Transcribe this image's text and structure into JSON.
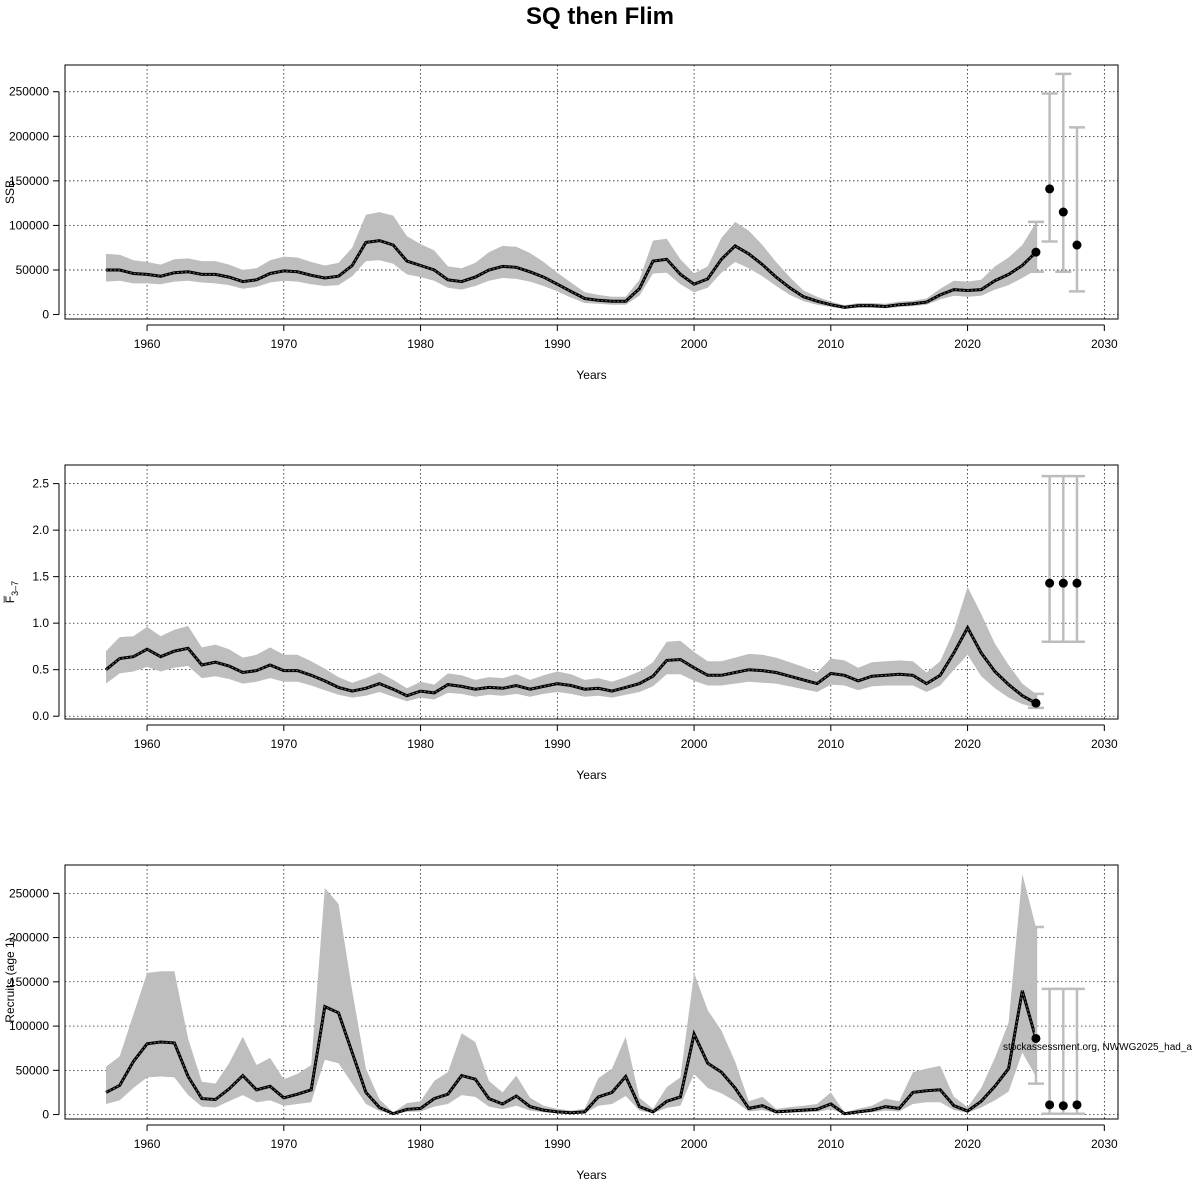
{
  "title": "SQ then Flim",
  "colors": {
    "band": "#bebebe",
    "line": "#000000",
    "errorbar": "#bdbdbd",
    "grid": "#000000",
    "dot": "#000000"
  },
  "chart_data": [
    {
      "type": "line",
      "id": "ssb",
      "ylabel": "SSB",
      "xlabel": "Years",
      "xlim": [
        1954,
        2031
      ],
      "ylim": [
        -5000,
        280000
      ],
      "xticks": [
        1960,
        1970,
        1980,
        1990,
        2000,
        2010,
        2020,
        2030
      ],
      "yticks": [
        0,
        50000,
        100000,
        150000,
        200000,
        250000
      ],
      "grid": true,
      "x": [
        1957,
        1958,
        1959,
        1960,
        1961,
        1962,
        1963,
        1964,
        1965,
        1966,
        1967,
        1968,
        1969,
        1970,
        1971,
        1972,
        1973,
        1974,
        1975,
        1976,
        1977,
        1978,
        1979,
        1980,
        1981,
        1982,
        1983,
        1984,
        1985,
        1986,
        1987,
        1988,
        1989,
        1990,
        1991,
        1992,
        1993,
        1994,
        1995,
        1996,
        1997,
        1998,
        1999,
        2000,
        2001,
        2002,
        2003,
        2004,
        2005,
        2006,
        2007,
        2008,
        2009,
        2010,
        2011,
        2012,
        2013,
        2014,
        2015,
        2016,
        2017,
        2018,
        2019,
        2020,
        2021,
        2022,
        2023,
        2024,
        2025
      ],
      "estimate": [
        50000,
        50000,
        46000,
        45000,
        43000,
        47000,
        48000,
        45000,
        45000,
        42000,
        37000,
        39000,
        46000,
        49000,
        48000,
        44000,
        41000,
        43000,
        55000,
        81000,
        83000,
        78000,
        60000,
        55000,
        50000,
        39000,
        37000,
        42000,
        50000,
        54000,
        53000,
        48000,
        42000,
        34000,
        26000,
        18000,
        16000,
        15000,
        15000,
        29000,
        60000,
        62000,
        45000,
        34000,
        40000,
        62000,
        77000,
        68000,
        56000,
        42000,
        30000,
        20000,
        15000,
        11000,
        8000,
        10000,
        10000,
        9000,
        11000,
        12000,
        14000,
        22000,
        28000,
        27000,
        28000,
        38000,
        45000,
        55000,
        70000
      ],
      "lower": [
        37000,
        38000,
        35000,
        35000,
        34000,
        37000,
        38000,
        36000,
        35000,
        33000,
        29000,
        31000,
        36000,
        38000,
        37000,
        34000,
        32000,
        33000,
        43000,
        60000,
        61000,
        57000,
        45000,
        42000,
        38000,
        30000,
        28000,
        32000,
        38000,
        41000,
        40000,
        37000,
        32000,
        26000,
        19000,
        13000,
        12000,
        11000,
        11000,
        21000,
        46000,
        47000,
        34000,
        25000,
        30000,
        47000,
        59000,
        52000,
        43000,
        32000,
        22000,
        15000,
        11000,
        8500,
        6500,
        7500,
        7500,
        7000,
        8500,
        9500,
        11000,
        17000,
        21000,
        20000,
        21000,
        28000,
        33000,
        41000,
        50000
      ],
      "upper": [
        68000,
        67000,
        61000,
        59000,
        56000,
        62000,
        63000,
        60000,
        60000,
        56000,
        50000,
        52000,
        61000,
        65000,
        64000,
        59000,
        55000,
        58000,
        75000,
        112000,
        115000,
        111000,
        88000,
        79000,
        72000,
        54000,
        52000,
        58000,
        70000,
        77000,
        76000,
        69000,
        59000,
        47000,
        36000,
        25000,
        22000,
        20000,
        20000,
        39000,
        83000,
        85000,
        62000,
        46000,
        54000,
        86000,
        104000,
        94000,
        78000,
        59000,
        42000,
        27000,
        20000,
        14500,
        10500,
        13000,
        13000,
        12000,
        14500,
        15500,
        18000,
        29000,
        38000,
        37000,
        39000,
        54000,
        64000,
        78000,
        103000
      ],
      "projection": {
        "x": [
          2025,
          2026,
          2027,
          2028
        ],
        "y": [
          70000,
          141000,
          115000,
          78000
        ],
        "low": [
          48000,
          82000,
          48000,
          26000
        ],
        "high": [
          104000,
          248000,
          270000,
          210000
        ]
      }
    },
    {
      "type": "line",
      "id": "fbar",
      "ylabel": "F̅",
      "ylabel_sub": "3–7",
      "xlabel": "Years",
      "xlim": [
        1954,
        2031
      ],
      "ylim": [
        -0.03,
        2.7
      ],
      "xticks": [
        1960,
        1970,
        1980,
        1990,
        2000,
        2010,
        2020,
        2030
      ],
      "yticks": [
        0.0,
        0.5,
        1.0,
        1.5,
        2.0,
        2.5
      ],
      "ytick_labels": [
        "0.0",
        "0.5",
        "1.0",
        "1.5",
        "2.0",
        "2.5"
      ],
      "grid": true,
      "x": [
        1957,
        1958,
        1959,
        1960,
        1961,
        1962,
        1963,
        1964,
        1965,
        1966,
        1967,
        1968,
        1969,
        1970,
        1971,
        1972,
        1973,
        1974,
        1975,
        1976,
        1977,
        1978,
        1979,
        1980,
        1981,
        1982,
        1983,
        1984,
        1985,
        1986,
        1987,
        1988,
        1989,
        1990,
        1991,
        1992,
        1993,
        1994,
        1995,
        1996,
        1997,
        1998,
        1999,
        2000,
        2001,
        2002,
        2003,
        2004,
        2005,
        2006,
        2007,
        2008,
        2009,
        2010,
        2011,
        2012,
        2013,
        2014,
        2015,
        2016,
        2017,
        2018,
        2019,
        2020,
        2021,
        2022,
        2023,
        2024,
        2025
      ],
      "estimate": [
        0.5,
        0.62,
        0.64,
        0.72,
        0.64,
        0.7,
        0.73,
        0.55,
        0.58,
        0.54,
        0.47,
        0.49,
        0.55,
        0.49,
        0.49,
        0.44,
        0.38,
        0.31,
        0.27,
        0.3,
        0.35,
        0.29,
        0.22,
        0.27,
        0.25,
        0.34,
        0.32,
        0.29,
        0.31,
        0.3,
        0.33,
        0.29,
        0.32,
        0.35,
        0.33,
        0.29,
        0.3,
        0.27,
        0.31,
        0.35,
        0.43,
        0.6,
        0.61,
        0.52,
        0.44,
        0.44,
        0.47,
        0.5,
        0.49,
        0.47,
        0.43,
        0.39,
        0.35,
        0.46,
        0.44,
        0.38,
        0.43,
        0.44,
        0.45,
        0.44,
        0.35,
        0.44,
        0.68,
        0.95,
        0.68,
        0.48,
        0.34,
        0.22,
        0.14
      ],
      "lower": [
        0.35,
        0.46,
        0.48,
        0.53,
        0.48,
        0.52,
        0.54,
        0.41,
        0.43,
        0.4,
        0.35,
        0.37,
        0.41,
        0.37,
        0.37,
        0.33,
        0.28,
        0.23,
        0.2,
        0.22,
        0.26,
        0.21,
        0.16,
        0.2,
        0.18,
        0.25,
        0.24,
        0.21,
        0.23,
        0.22,
        0.24,
        0.21,
        0.24,
        0.26,
        0.24,
        0.21,
        0.22,
        0.2,
        0.23,
        0.26,
        0.32,
        0.45,
        0.45,
        0.38,
        0.33,
        0.33,
        0.35,
        0.37,
        0.36,
        0.35,
        0.32,
        0.29,
        0.26,
        0.34,
        0.33,
        0.28,
        0.32,
        0.33,
        0.33,
        0.33,
        0.26,
        0.33,
        0.5,
        0.66,
        0.43,
        0.3,
        0.2,
        0.13,
        0.09
      ],
      "upper": [
        0.7,
        0.85,
        0.86,
        0.96,
        0.86,
        0.93,
        0.97,
        0.74,
        0.77,
        0.72,
        0.63,
        0.66,
        0.74,
        0.66,
        0.66,
        0.59,
        0.51,
        0.42,
        0.36,
        0.41,
        0.47,
        0.39,
        0.3,
        0.37,
        0.34,
        0.46,
        0.44,
        0.39,
        0.42,
        0.41,
        0.45,
        0.39,
        0.44,
        0.48,
        0.45,
        0.39,
        0.41,
        0.37,
        0.42,
        0.48,
        0.58,
        0.8,
        0.81,
        0.69,
        0.59,
        0.59,
        0.63,
        0.67,
        0.66,
        0.63,
        0.58,
        0.53,
        0.47,
        0.62,
        0.6,
        0.52,
        0.58,
        0.59,
        0.6,
        0.59,
        0.47,
        0.59,
        0.92,
        1.39,
        1.1,
        0.78,
        0.55,
        0.35,
        0.24
      ],
      "projection": {
        "x": [
          2025,
          2026,
          2027,
          2028
        ],
        "y": [
          0.14,
          1.43,
          1.43,
          1.43
        ],
        "low": [
          0.09,
          0.8,
          0.8,
          0.8
        ],
        "high": [
          0.24,
          2.58,
          2.58,
          2.58
        ]
      }
    },
    {
      "type": "line",
      "id": "recruits",
      "ylabel": "Recruits (age 1)",
      "xlabel": "Years",
      "xlim": [
        1954,
        2031
      ],
      "ylim": [
        -5000,
        282000
      ],
      "xticks": [
        1960,
        1970,
        1980,
        1990,
        2000,
        2010,
        2020,
        2030
      ],
      "yticks": [
        0,
        50000,
        100000,
        150000,
        200000,
        250000
      ],
      "grid": true,
      "x": [
        1957,
        1958,
        1959,
        1960,
        1961,
        1962,
        1963,
        1964,
        1965,
        1966,
        1967,
        1968,
        1969,
        1970,
        1971,
        1972,
        1973,
        1974,
        1975,
        1976,
        1977,
        1978,
        1979,
        1980,
        1981,
        1982,
        1983,
        1984,
        1985,
        1986,
        1987,
        1988,
        1989,
        1990,
        1991,
        1992,
        1993,
        1994,
        1995,
        1996,
        1997,
        1998,
        1999,
        2000,
        2001,
        2002,
        2003,
        2004,
        2005,
        2006,
        2007,
        2008,
        2009,
        2010,
        2011,
        2012,
        2013,
        2014,
        2015,
        2016,
        2017,
        2018,
        2019,
        2020,
        2021,
        2022,
        2023,
        2024,
        2025
      ],
      "estimate": [
        25000,
        33000,
        60000,
        80000,
        82000,
        81000,
        43000,
        18000,
        17000,
        29000,
        44000,
        28000,
        32000,
        19000,
        23000,
        28000,
        122000,
        115000,
        70000,
        25000,
        8000,
        1000,
        6000,
        7000,
        18000,
        23000,
        44000,
        40000,
        18000,
        12000,
        21000,
        9000,
        5000,
        3000,
        2000,
        3000,
        20000,
        25000,
        43000,
        9000,
        3000,
        15000,
        20000,
        91000,
        58000,
        48000,
        30000,
        7000,
        10000,
        3000,
        4000,
        5000,
        6000,
        12000,
        1000,
        3000,
        5000,
        9000,
        7000,
        25000,
        27000,
        28000,
        10000,
        4000,
        15000,
        32000,
        52000,
        140000,
        86000
      ],
      "lower": [
        12000,
        16000,
        30000,
        42000,
        43000,
        42000,
        22000,
        9000,
        8000,
        15000,
        22000,
        14000,
        16000,
        10000,
        12000,
        14000,
        62000,
        58000,
        35000,
        12000,
        4000,
        500,
        3000,
        3500,
        9000,
        12000,
        22000,
        20000,
        9000,
        6000,
        10000,
        4500,
        2500,
        1500,
        1000,
        1500,
        10000,
        12000,
        21000,
        4500,
        1500,
        7500,
        10000,
        46000,
        30000,
        24000,
        15000,
        3500,
        5000,
        1500,
        2000,
        2500,
        3000,
        6000,
        500,
        1500,
        2500,
        4500,
        3500,
        12000,
        14000,
        14000,
        5000,
        2000,
        8000,
        16000,
        26000,
        70000,
        43000
      ],
      "upper": [
        54000,
        66000,
        113000,
        160000,
        162000,
        162000,
        86000,
        37000,
        35000,
        58000,
        88000,
        56000,
        64000,
        40000,
        46000,
        56000,
        256000,
        238000,
        140000,
        52000,
        17000,
        2500,
        13000,
        15000,
        38000,
        48000,
        92000,
        82000,
        38000,
        25000,
        44000,
        19000,
        10000,
        6500,
        4500,
        6500,
        41000,
        52000,
        88000,
        19000,
        6500,
        31000,
        42000,
        160000,
        118000,
        95000,
        60000,
        15000,
        20000,
        6500,
        8500,
        10000,
        12000,
        25000,
        2500,
        6500,
        10000,
        18000,
        15000,
        48000,
        52000,
        55000,
        20000,
        8500,
        30000,
        64000,
        104000,
        272000,
        212000
      ],
      "projection": {
        "x": [
          2025,
          2026,
          2027,
          2028
        ],
        "y": [
          86000,
          11000,
          10000,
          11000
        ],
        "low": [
          35000,
          1000,
          1000,
          1000
        ],
        "high": [
          212000,
          142000,
          142000,
          142000
        ]
      }
    }
  ],
  "annotation": "stockassessment.org, NWWG2025_had_a"
}
